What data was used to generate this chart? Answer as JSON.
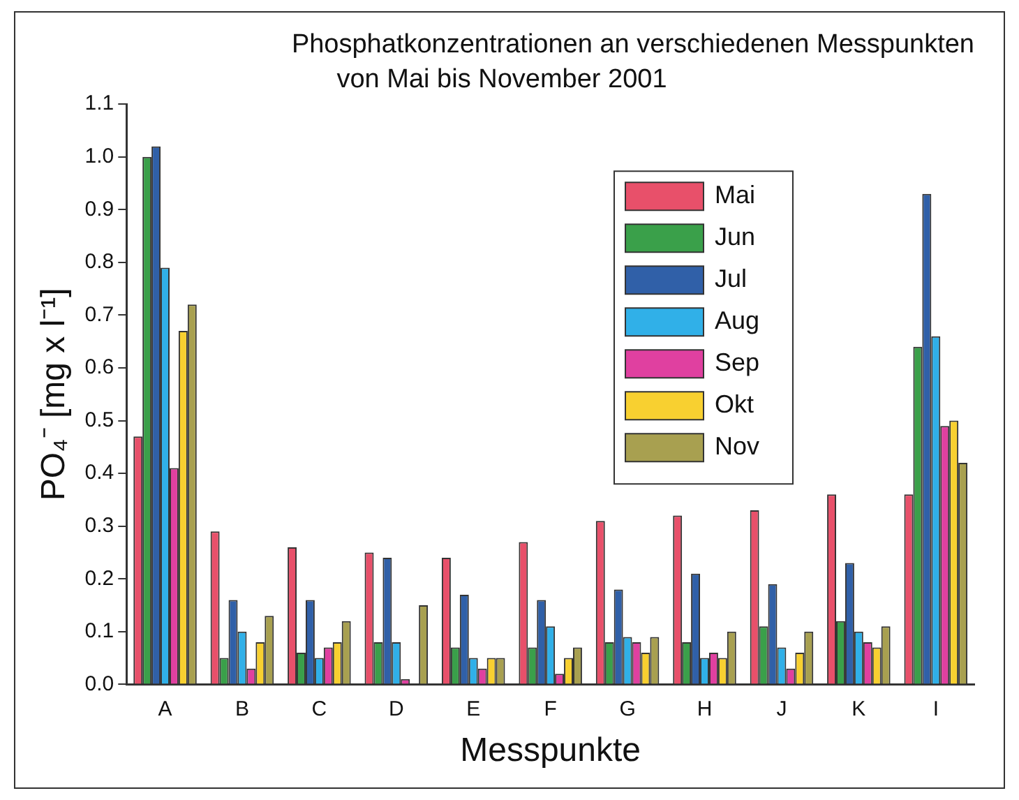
{
  "chart_data": {
    "type": "bar",
    "title": "Phosphatkonzentrationen an verschiedenen Messpunkten",
    "subtitle": "von Mai bis November 2001",
    "xlabel": "Messpunkte",
    "ylabel": "PO₄⁻ [mg x l⁻¹]",
    "categories": [
      "A",
      "B",
      "C",
      "D",
      "E",
      "F",
      "G",
      "H",
      "J",
      "K",
      "I"
    ],
    "series": [
      {
        "name": "Mai",
        "color": "#e8506a",
        "values": [
          0.47,
          0.29,
          0.26,
          0.25,
          0.24,
          0.27,
          0.31,
          0.32,
          0.33,
          0.36,
          0.36
        ]
      },
      {
        "name": "Jun",
        "color": "#3aa04a",
        "values": [
          1.0,
          0.05,
          0.06,
          0.08,
          0.07,
          0.07,
          0.08,
          0.08,
          0.11,
          0.12,
          0.64
        ]
      },
      {
        "name": "Jul",
        "color": "#3060a8",
        "values": [
          1.02,
          0.16,
          0.16,
          0.24,
          0.17,
          0.16,
          0.18,
          0.21,
          0.19,
          0.23,
          0.93
        ]
      },
      {
        "name": "Aug",
        "color": "#30b0e8",
        "values": [
          0.79,
          0.1,
          0.05,
          0.08,
          0.05,
          0.11,
          0.09,
          0.05,
          0.07,
          0.1,
          0.66
        ]
      },
      {
        "name": "Sep",
        "color": "#e040a0",
        "values": [
          0.41,
          0.03,
          0.07,
          0.01,
          0.03,
          0.02,
          0.08,
          0.06,
          0.03,
          0.08,
          0.49
        ]
      },
      {
        "name": "Okt",
        "color": "#f8d030",
        "values": [
          0.67,
          0.08,
          0.08,
          null,
          0.05,
          0.05,
          0.06,
          0.05,
          0.06,
          0.07,
          0.5
        ]
      },
      {
        "name": "Nov",
        "color": "#a8a050",
        "values": [
          0.72,
          0.13,
          0.12,
          0.15,
          0.05,
          0.07,
          0.09,
          0.1,
          0.1,
          0.11,
          0.42
        ]
      }
    ],
    "ylim": [
      0,
      1.1
    ],
    "yticks": [
      {
        "value": 0,
        "label": "0.0"
      },
      0.1,
      0.2,
      0.3,
      0.4,
      0.5,
      0.6,
      0.7,
      0.8,
      0.9,
      {
        "value": 1,
        "label": "1.0"
      },
      1.1
    ],
    "grid": false,
    "legend": "top right"
  }
}
